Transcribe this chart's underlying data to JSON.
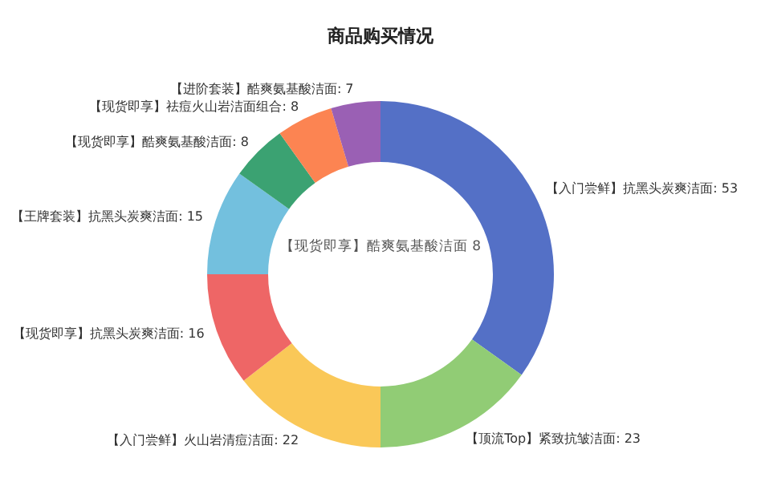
{
  "chart_data": {
    "type": "donut",
    "title": "商品购买情况",
    "categories": [
      "【入门尝鲜】抗黑头炭爽洁面",
      "【顶流Top】紧致抗皱洁面",
      "【入门尝鲜】火山岩清痘洁面",
      "【现货即享】抗黑头炭爽洁面",
      "【王牌套装】抗黑头炭爽洁面",
      "【现货即享】酷爽氨基酸洁面",
      "【现货即享】祛痘火山岩洁面组合",
      "【进阶套装】酷爽氨基酸洁面"
    ],
    "values": [
      53,
      23,
      22,
      16,
      15,
      8,
      8,
      7
    ],
    "colors": [
      "#5470c6",
      "#91cc75",
      "#fac858",
      "#ee6666",
      "#73c0de",
      "#3ba272",
      "#fc8452",
      "#9a60b4"
    ],
    "value_labels": [
      ": 53",
      ": 23",
      ": 22",
      ": 16",
      ": 15",
      ": 8",
      ": 8",
      ": 7"
    ],
    "legend": false,
    "annotations": [
      "【现货即享】酷爽氨基酸洁面   8"
    ]
  }
}
